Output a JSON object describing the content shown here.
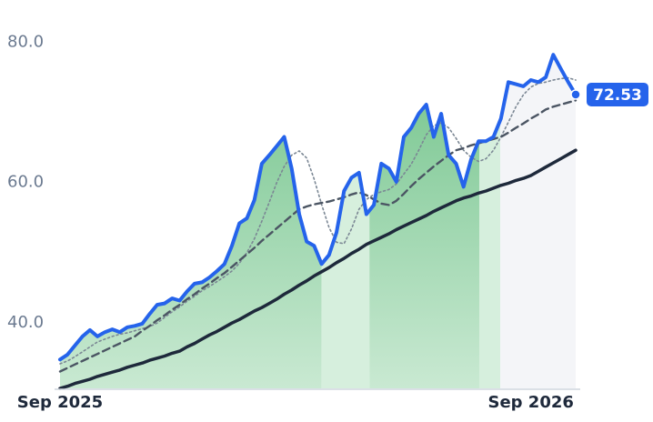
{
  "chart_data": {
    "type": "line",
    "categories": [
      "Sep 2025",
      null,
      null,
      null,
      null,
      null,
      null,
      null,
      null,
      null,
      null,
      null,
      null,
      null,
      null,
      null,
      null,
      null,
      null,
      null,
      null,
      null,
      null,
      null,
      null,
      null,
      null,
      null,
      null,
      null,
      null,
      null,
      null,
      null,
      null,
      null,
      null,
      null,
      null,
      null,
      null,
      null,
      null,
      null,
      null,
      null,
      null,
      null,
      null,
      null,
      null,
      null,
      null,
      null,
      null,
      null,
      null,
      null,
      null,
      null,
      null,
      null,
      null,
      "Sep 2026",
      null,
      null,
      null,
      null,
      null,
      null
    ],
    "series": [
      {
        "color": "#2563eb",
        "style": "solid",
        "width": 4,
        "values": [
          34.8,
          35.5,
          36.8,
          38.1,
          39.0,
          38.1,
          38.7,
          39.1,
          38.7,
          39.4,
          39.6,
          39.9,
          41.3,
          42.6,
          42.8,
          43.5,
          43.2,
          44.5,
          45.6,
          45.8,
          46.5,
          47.4,
          48.4,
          51.0,
          54.2,
          54.9,
          57.5,
          62.7,
          63.9,
          65.2,
          66.5,
          62.0,
          55.5,
          51.6,
          51.0,
          48.4,
          49.7,
          52.9,
          58.8,
          60.7,
          61.4,
          55.5,
          56.8,
          62.7,
          62.0,
          60.1,
          66.5,
          67.8,
          69.8,
          71.1,
          66.5,
          69.8,
          63.9,
          62.7,
          59.4,
          63.3,
          65.9,
          65.9,
          66.5,
          69.1,
          74.3,
          74.0,
          73.7,
          74.6,
          74.3,
          75.0,
          78.2,
          76.2,
          74.3,
          72.53
        ]
      },
      {
        "color": "#7b8794",
        "style": "dot",
        "width": 1.6,
        "values": [
          34.2,
          34.6,
          35.2,
          35.9,
          36.6,
          37.3,
          37.7,
          38.1,
          38.4,
          38.6,
          38.9,
          39.2,
          39.5,
          40.0,
          40.8,
          41.6,
          42.3,
          43.1,
          43.8,
          44.6,
          45.2,
          45.9,
          46.6,
          47.4,
          48.5,
          50.0,
          52.0,
          54.5,
          57.2,
          60.0,
          62.3,
          63.9,
          64.5,
          63.5,
          60.5,
          56.9,
          53.6,
          51.5,
          51.3,
          53.4,
          56.2,
          57.6,
          58.3,
          58.7,
          59.0,
          59.8,
          61.2,
          62.6,
          64.6,
          66.8,
          68.1,
          68.5,
          67.8,
          66.3,
          64.6,
          63.6,
          63.0,
          63.4,
          64.6,
          66.5,
          68.6,
          70.8,
          72.5,
          73.6,
          74.1,
          74.3,
          74.6,
          74.8,
          74.9,
          74.6
        ]
      },
      {
        "color": "#4b5563",
        "style": "dash",
        "width": 2.4,
        "values": [
          33.1,
          33.6,
          34.1,
          34.6,
          35.1,
          35.6,
          36.1,
          36.6,
          37.1,
          37.6,
          38.1,
          38.9,
          39.6,
          40.4,
          41.1,
          41.9,
          42.6,
          43.4,
          44.1,
          44.9,
          45.6,
          46.4,
          47.1,
          48.0,
          48.9,
          49.8,
          50.7,
          51.7,
          52.6,
          53.5,
          54.4,
          55.3,
          56.2,
          56.6,
          56.9,
          57.1,
          57.3,
          57.6,
          57.9,
          58.3,
          58.6,
          58.2,
          57.6,
          57.0,
          56.8,
          57.4,
          58.4,
          59.5,
          60.5,
          61.4,
          62.3,
          63.1,
          63.9,
          64.6,
          64.9,
          65.3,
          65.6,
          65.9,
          66.2,
          66.5,
          67.1,
          67.8,
          68.4,
          69.1,
          69.7,
          70.4,
          70.8,
          71.1,
          71.4,
          71.7
        ]
      },
      {
        "color": "#1e293b",
        "style": "solid",
        "width": 3.5,
        "values": [
          30.7,
          31.0,
          31.4,
          31.7,
          32.0,
          32.4,
          32.7,
          33.0,
          33.3,
          33.7,
          34.0,
          34.3,
          34.7,
          35.0,
          35.3,
          35.7,
          36.0,
          36.6,
          37.1,
          37.7,
          38.3,
          38.8,
          39.4,
          40.0,
          40.5,
          41.1,
          41.7,
          42.2,
          42.8,
          43.4,
          44.1,
          44.7,
          45.4,
          46.0,
          46.7,
          47.3,
          47.9,
          48.6,
          49.2,
          49.9,
          50.5,
          51.2,
          51.7,
          52.2,
          52.7,
          53.3,
          53.8,
          54.3,
          54.8,
          55.3,
          55.9,
          56.4,
          56.9,
          57.4,
          57.8,
          58.1,
          58.5,
          58.8,
          59.2,
          59.6,
          59.9,
          60.3,
          60.6,
          61.0,
          61.6,
          62.2,
          62.8,
          63.4,
          64.0,
          64.6
        ]
      }
    ],
    "zones": [
      {
        "from": 0,
        "to": 35,
        "color": "green"
      },
      {
        "from": 35,
        "to": 41.4,
        "color": "#d6efdd"
      },
      {
        "from": 41.4,
        "to": 56.1,
        "color": "green"
      },
      {
        "from": 56.1,
        "to": 58.9,
        "color": "#d6efdd"
      },
      {
        "from": 58.9,
        "to": 69,
        "color": "#f4f5f8"
      }
    ],
    "ylim": [
      30.7,
      83.4
    ],
    "yticks": [
      {
        "value": 40,
        "label": "40.0"
      },
      {
        "value": 60,
        "label": "60.0"
      },
      {
        "value": 80,
        "label": "80.0"
      }
    ]
  }
}
